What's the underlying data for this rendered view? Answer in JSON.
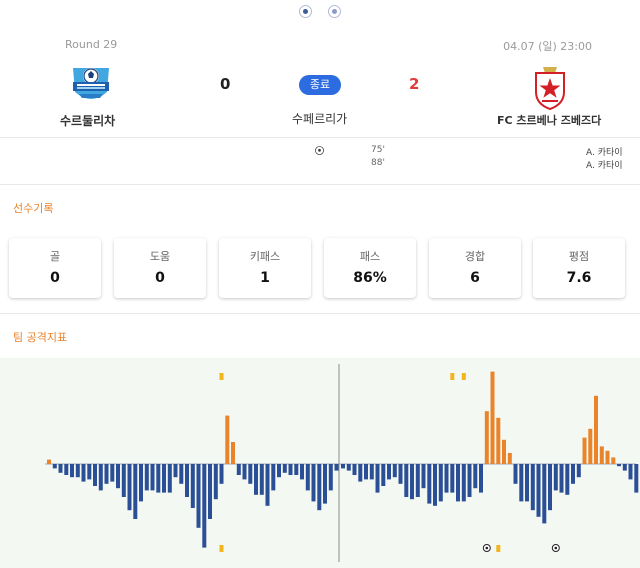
{
  "pager": {
    "count": 2,
    "active": 0
  },
  "match": {
    "round": "Round 29",
    "datetime": "04.07 (일) 23:00",
    "status": "종료",
    "league": "수페르리가",
    "home": {
      "name": "수르둘리차",
      "score": "0",
      "logo": "surdulica-logo"
    },
    "away": {
      "name": "FC 츠르베나 즈베즈다",
      "score": "2",
      "logo": "red-star-logo"
    }
  },
  "events": [
    {
      "minute": "75'",
      "player": "A. 카타이",
      "icon": "soccer-ball-icon"
    },
    {
      "minute": "88'",
      "player": "A. 카타이",
      "icon": ""
    }
  ],
  "player_stats": {
    "title": "선수기록",
    "items": [
      {
        "label": "골",
        "value": "0"
      },
      {
        "label": "도움",
        "value": "0"
      },
      {
        "label": "키패스",
        "value": "1"
      },
      {
        "label": "패스",
        "value": "86%"
      },
      {
        "label": "경합",
        "value": "6"
      },
      {
        "label": "평점",
        "value": "7.6"
      }
    ]
  },
  "team_attack": {
    "title": "팀 공격지표",
    "colors": {
      "home": "#2b4f96",
      "away": "#e9842b",
      "background": "#f4f8f2"
    }
  },
  "chart_data": {
    "type": "bar",
    "description": "Momentum bars per minute; positive = away (orange, up), negative = home (blue, down)",
    "first_half": [
      0.1,
      -0.1,
      -0.2,
      -0.25,
      -0.3,
      -0.3,
      -0.4,
      -0.35,
      -0.5,
      -0.6,
      -0.45,
      -0.4,
      -0.55,
      -0.75,
      -1.05,
      -1.25,
      -0.85,
      -0.6,
      -0.6,
      -0.65,
      -0.65,
      -0.65,
      -0.3,
      -0.45,
      -0.75,
      -1.0,
      -1.45,
      -1.9,
      -1.25,
      -0.8,
      -0.45,
      1.1,
      0.5,
      -0.25,
      -0.35,
      -0.45,
      -0.7,
      -0.7,
      -0.95,
      -0.6,
      -0.3,
      -0.2,
      -0.25,
      -0.25,
      -0.35,
      -0.6,
      -0.85,
      -1.05,
      -0.9,
      -0.6,
      -0.15
    ],
    "second_half": [
      -0.1,
      -0.15,
      -0.25,
      -0.4,
      -0.35,
      -0.35,
      -0.65,
      -0.5,
      -0.35,
      -0.3,
      -0.45,
      -0.75,
      -0.8,
      -0.75,
      -0.55,
      -0.9,
      -0.95,
      -0.85,
      -0.65,
      -0.65,
      -0.85,
      -0.85,
      -0.75,
      -0.55,
      -0.65,
      1.2,
      2.1,
      1.05,
      0.55,
      0.25,
      -0.45,
      -0.85,
      -0.85,
      -1.05,
      -1.2,
      -1.35,
      -1.05,
      -0.6,
      -0.65,
      -0.7,
      -0.45,
      -0.3,
      0.6,
      0.8,
      1.55,
      0.4,
      0.3,
      0.15,
      -0.05,
      -0.15,
      -0.35,
      -0.65,
      -0.55,
      -0.3,
      -0.2,
      -0.15,
      -0.1
    ],
    "first_half_markers": {
      "top": [
        {
          "index": 30,
          "kind": "away-event"
        }
      ],
      "bottom": [
        {
          "index": 30,
          "kind": "home-event"
        }
      ]
    },
    "second_half_markers": {
      "top": [
        {
          "index": 19,
          "kind": "away-event"
        },
        {
          "index": 21,
          "kind": "away-event"
        }
      ],
      "bottom": [
        {
          "index": 25,
          "kind": "goal"
        },
        {
          "index": 27,
          "kind": "away-event"
        },
        {
          "index": 37,
          "kind": "goal"
        }
      ]
    },
    "ylim": [
      -2,
      2.5
    ]
  }
}
